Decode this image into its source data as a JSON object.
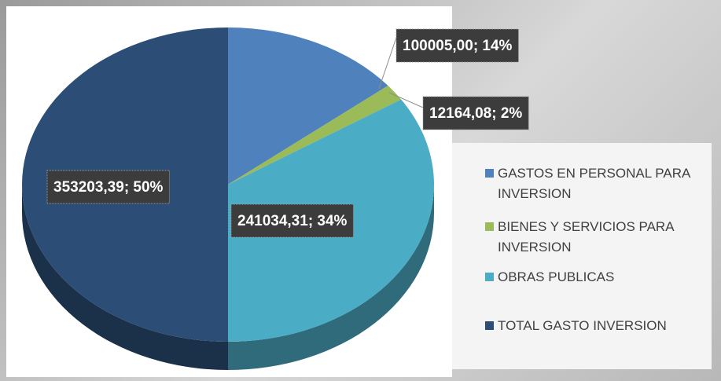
{
  "chart_data": {
    "type": "pie",
    "categories": [
      "GASTOS EN PERSONAL PARA INVERSION",
      "BIENES Y SERVICIOS PARA INVERSION",
      "OBRAS PUBLICAS",
      "TOTAL GASTO INVERSION"
    ],
    "values": [
      100005.0,
      12164.08,
      241034.31,
      353203.39
    ],
    "value_labels": [
      "100005,00; 14%",
      "12164,08; 2%",
      "241034,31; 34%",
      "353203,39; 50%"
    ],
    "colors": [
      "#4f81bd",
      "#9bbb59",
      "#4bacc6",
      "#2c4d75"
    ],
    "legend": "right"
  }
}
